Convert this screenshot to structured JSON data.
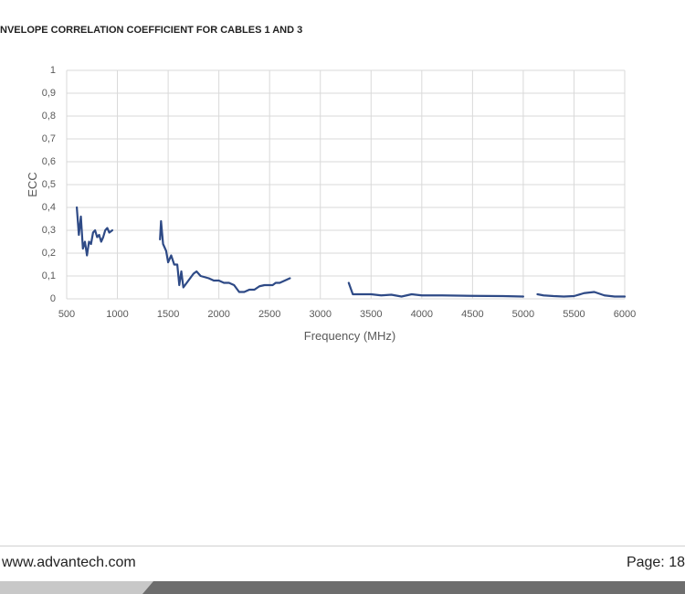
{
  "header": {
    "title": "NVELOPE CORRELATION COEFFICIENT FOR CABLES 1 AND 3"
  },
  "chart_data": {
    "type": "line",
    "color": "#2e4a86",
    "grid": true,
    "x_label": "Frequency (MHz)",
    "y_label": "ECC",
    "xlim": [
      500,
      6000
    ],
    "xticks": [
      500,
      1000,
      1500,
      2000,
      2500,
      3000,
      3500,
      4000,
      4500,
      5000,
      5500,
      6000
    ],
    "ylim": [
      0,
      1
    ],
    "yticks": [
      0,
      {
        "value": 0.1,
        "label": "0,1"
      },
      {
        "value": 0.2,
        "label": "0,2"
      },
      {
        "value": 0.3,
        "label": "0,3"
      },
      {
        "value": 0.4,
        "label": "0,4"
      },
      {
        "value": 0.5,
        "label": "0,5"
      },
      {
        "value": 0.6,
        "label": "0,6"
      },
      {
        "value": 0.7,
        "label": "0,7"
      },
      {
        "value": 0.8,
        "label": "0,8"
      },
      {
        "value": 0.9,
        "label": "0,9"
      },
      1
    ],
    "x": [
      600,
      620,
      640,
      660,
      680,
      700,
      720,
      740,
      760,
      780,
      800,
      820,
      840,
      860,
      880,
      900,
      920,
      950,
      1200,
      1420,
      1430,
      1450,
      1480,
      1500,
      1530,
      1560,
      1590,
      1610,
      1630,
      1650,
      1700,
      1750,
      1780,
      1820,
      1900,
      1950,
      2000,
      2050,
      2100,
      2150,
      2200,
      2250,
      2300,
      2350,
      2400,
      2450,
      2500,
      2530,
      2560,
      2600,
      2650,
      2700,
      3000,
      3280,
      3320,
      3400,
      3500,
      3600,
      3700,
      3800,
      3900,
      4000,
      4200,
      4500,
      4800,
      5000,
      5070,
      5140,
      5200,
      5300,
      5400,
      5500,
      5600,
      5700,
      5800,
      5900,
      6000
    ],
    "values": [
      0.4,
      0.28,
      0.36,
      0.22,
      0.25,
      0.19,
      0.25,
      0.24,
      0.29,
      0.3,
      0.27,
      0.28,
      0.25,
      0.27,
      0.3,
      0.31,
      0.29,
      0.3,
      null,
      0.26,
      0.34,
      0.24,
      0.21,
      0.16,
      0.19,
      0.15,
      0.15,
      0.06,
      0.12,
      0.05,
      0.08,
      0.11,
      0.12,
      0.1,
      0.09,
      0.08,
      0.08,
      0.07,
      0.07,
      0.06,
      0.03,
      0.03,
      0.04,
      0.04,
      0.055,
      0.06,
      0.06,
      0.06,
      0.07,
      0.07,
      0.08,
      0.09,
      null,
      0.07,
      0.02,
      0.02,
      0.02,
      0.015,
      0.018,
      0.01,
      0.02,
      0.015,
      0.015,
      0.013,
      0.012,
      0.01,
      null,
      0.02,
      0.015,
      0.012,
      0.01,
      0.012,
      0.025,
      0.03,
      0.015,
      0.01,
      0.01
    ]
  },
  "footer": {
    "url": "www.advantech.com",
    "page": "Page: 18"
  }
}
